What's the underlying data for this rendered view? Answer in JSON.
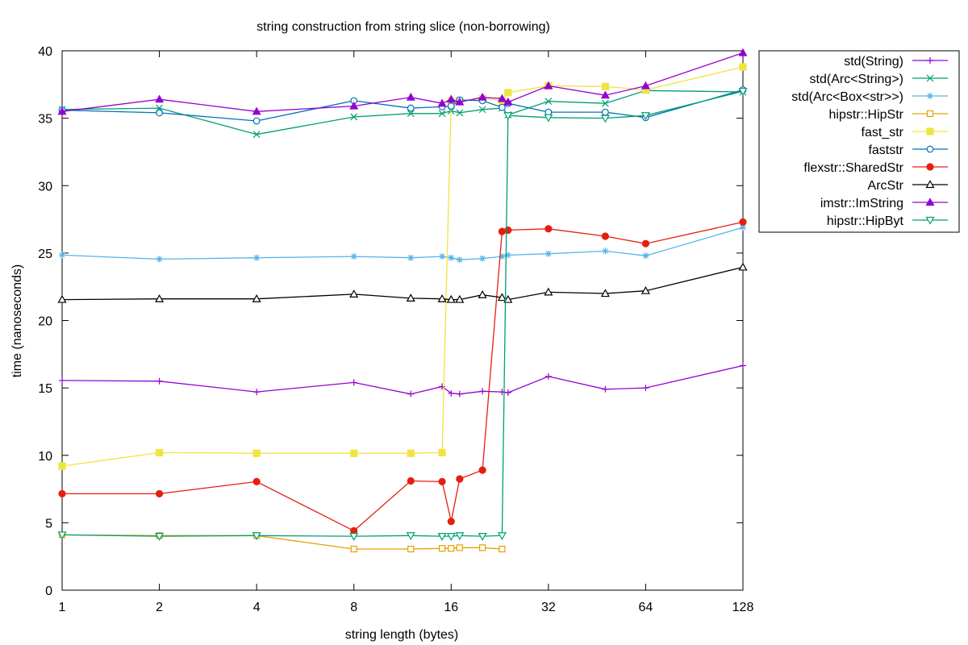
{
  "chart_data": {
    "type": "line",
    "title": "string construction from string slice (non-borrowing)",
    "xlabel": "string length (bytes)",
    "ylabel": "time (nanoseconds)",
    "xscale": "log2",
    "xlim": [
      1,
      128
    ],
    "ylim": [
      0,
      40
    ],
    "xticks": [
      1,
      2,
      4,
      8,
      16,
      32,
      64,
      128
    ],
    "yticks": [
      0,
      5,
      10,
      15,
      20,
      25,
      30,
      35,
      40
    ],
    "grid": false,
    "legend": "outside-top-right",
    "x": [
      1,
      2,
      4,
      8,
      12,
      15,
      16,
      17,
      20,
      23,
      24,
      32,
      48,
      64,
      128
    ],
    "series": [
      {
        "name": "std(String)",
        "color": "#9400d3",
        "marker": "plus",
        "values": [
          15.55,
          15.5,
          14.7,
          15.4,
          14.55,
          15.1,
          14.6,
          14.55,
          14.75,
          14.7,
          14.65,
          15.85,
          14.9,
          15.0,
          16.65
        ]
      },
      {
        "name": "std(Arc<String>)",
        "color": "#009e73",
        "marker": "cross",
        "values": [
          35.65,
          35.75,
          33.8,
          35.1,
          35.35,
          35.35,
          35.55,
          35.4,
          35.65,
          35.75,
          35.25,
          36.25,
          36.1,
          37.05,
          36.95
        ]
      },
      {
        "name": "std(Arc<Box<str>>)",
        "color": "#56b4e9",
        "marker": "star",
        "values": [
          24.85,
          24.55,
          24.65,
          24.75,
          24.65,
          24.75,
          24.65,
          24.5,
          24.6,
          24.75,
          24.85,
          24.95,
          25.15,
          24.8,
          26.9
        ]
      },
      {
        "name": "hipstr::HipStr",
        "color": "#e69f00",
        "marker": "square",
        "values": [
          4.1,
          4.05,
          4.05,
          3.05,
          3.05,
          3.1,
          3.1,
          3.15,
          3.15,
          3.05,
          null,
          null,
          null,
          null,
          null
        ]
      },
      {
        "name": "fast_str",
        "color": "#f0e442",
        "marker": "filled-square",
        "values": [
          9.2,
          10.2,
          10.15,
          10.15,
          10.15,
          10.2,
          36.25,
          36.3,
          36.45,
          36.3,
          36.9,
          37.4,
          37.35,
          37.1,
          38.8
        ]
      },
      {
        "name": "faststr",
        "color": "#0072b2",
        "marker": "circle",
        "values": [
          35.6,
          35.4,
          34.8,
          36.3,
          35.75,
          35.85,
          35.9,
          36.35,
          36.3,
          35.8,
          36.1,
          35.45,
          35.45,
          35.05,
          37.1
        ]
      },
      {
        "name": "flexstr::SharedStr",
        "color": "#e51e10",
        "marker": "filled-circle",
        "values": [
          7.15,
          7.15,
          8.05,
          4.4,
          8.1,
          8.05,
          5.1,
          8.25,
          8.9,
          26.6,
          26.7,
          26.8,
          26.25,
          25.7,
          27.3
        ]
      },
      {
        "name": "ArcStr",
        "color": "#000000",
        "marker": "triangle",
        "values": [
          21.55,
          21.6,
          21.6,
          21.95,
          21.65,
          21.6,
          21.55,
          21.55,
          21.9,
          21.7,
          21.55,
          22.1,
          22.0,
          22.2,
          23.95
        ]
      },
      {
        "name": "imstr::ImString",
        "color": "#9400d3",
        "marker": "filled-triangle",
        "values": [
          35.5,
          36.4,
          35.5,
          35.9,
          36.55,
          36.1,
          36.4,
          36.2,
          36.55,
          36.45,
          36.2,
          37.4,
          36.7,
          37.4,
          39.85
        ]
      },
      {
        "name": "hipstr::HipByt",
        "color": "#009e73",
        "marker": "triangle-down",
        "values": [
          4.1,
          4.0,
          4.05,
          4.0,
          4.05,
          4.0,
          4.0,
          4.05,
          4.0,
          4.05,
          35.2,
          35.05,
          35.0,
          35.2,
          37.0
        ]
      }
    ]
  }
}
